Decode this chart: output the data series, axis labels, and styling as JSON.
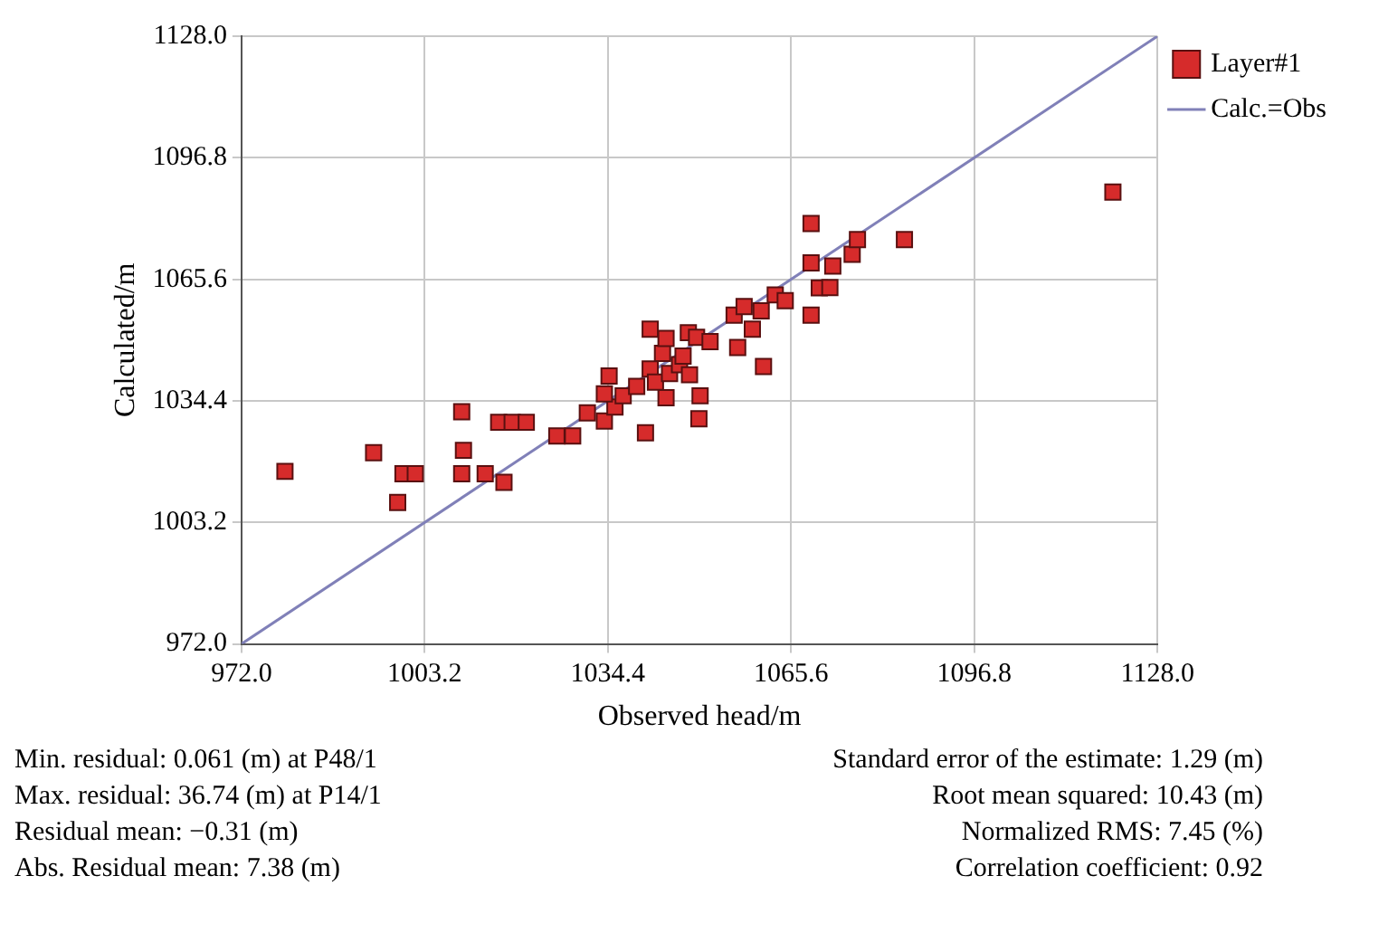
{
  "chart_data": {
    "type": "scatter",
    "xlabel": "Observed head/m",
    "ylabel": "Calculated/m",
    "xlim": [
      972,
      1128
    ],
    "ylim": [
      972,
      1128
    ],
    "xticks": [
      {
        "value": 972,
        "label": "972.0"
      },
      {
        "value": 1003.2,
        "label": "1003.2"
      },
      {
        "value": 1034.4,
        "label": "1034.4"
      },
      {
        "value": 1065.6,
        "label": "1065.6"
      },
      {
        "value": 1096.8,
        "label": "1096.8"
      },
      {
        "value": 1128,
        "label": "1128.0"
      }
    ],
    "yticks": [
      {
        "value": 972,
        "label": "972.0"
      },
      {
        "value": 1003.2,
        "label": "1003.2"
      },
      {
        "value": 1034.4,
        "label": "1034.4"
      },
      {
        "value": 1065.6,
        "label": "1065.6"
      },
      {
        "value": 1096.8,
        "label": "1096.8"
      },
      {
        "value": 1128,
        "label": "1128.0"
      }
    ],
    "grid": true,
    "legend": "top right",
    "series": [
      {
        "name": "Layer#1",
        "marker": "square",
        "color": "#d62b2b",
        "x": [
          979.4,
          994.5,
          998.6,
          999.5,
          1001.6,
          1009.5,
          1009.8,
          1009.5,
          1013.5,
          1016.7,
          1015.8,
          1018.1,
          1020.5,
          1025.7,
          1028.4,
          1030.9,
          1033.8,
          1035.6,
          1033.8,
          1034.6,
          1037.0,
          1039.3,
          1040.8,
          1041.6,
          1041.6,
          1042.5,
          1043.7,
          1044.3,
          1044.3,
          1044.9,
          1046.6,
          1047.2,
          1048.1,
          1048.3,
          1049.5,
          1050.1,
          1049.9,
          1051.8,
          1055.9,
          1056.5,
          1057.6,
          1059.0,
          1060.5,
          1060.9,
          1062.9,
          1064.6,
          1069.0,
          1069.0,
          1069.0,
          1070.4,
          1072.2,
          1072.7,
          1076.0,
          1076.9,
          1084.9,
          1120.4
        ],
        "values": [
          1016.3,
          1021.1,
          1008.3,
          1015.7,
          1015.7,
          1031.6,
          1021.7,
          1015.7,
          1015.7,
          1013.5,
          1028.9,
          1028.9,
          1028.9,
          1025.4,
          1025.4,
          1031.3,
          1029.2,
          1032.8,
          1036.2,
          1040.8,
          1035.7,
          1038.1,
          1026.2,
          1052.8,
          1042.6,
          1039.2,
          1046.6,
          1050.4,
          1035.2,
          1041.4,
          1043.7,
          1045.9,
          1051.9,
          1041.1,
          1050.7,
          1035.7,
          1029.8,
          1049.6,
          1056.4,
          1048.1,
          1058.6,
          1052.8,
          1057.5,
          1043.2,
          1061.6,
          1060.1,
          1079.9,
          1069.8,
          1056.4,
          1063.4,
          1063.5,
          1069.0,
          1072.0,
          1075.8,
          1075.8,
          1088.0
        ]
      },
      {
        "name": "Calc.=Obs",
        "type": "line",
        "color": "#8080b8",
        "line_style": "solid",
        "x": [
          972,
          1128
        ],
        "values": [
          972,
          1128
        ]
      }
    ],
    "annotations": [
      "Min. residual: 0.061 (m) at P48/1",
      "Standard error of the estimate: 1.29 (m)",
      "Max. residual: 36.74 (m) at P14/1",
      "Root mean squared: 10.43 (m)",
      "Residual mean: −0.31 (m)",
      "Normalized RMS: 7.45 (%)",
      "Abs. Residual mean: 7.38 (m)",
      "Correlation coefficient: 0.92"
    ]
  }
}
